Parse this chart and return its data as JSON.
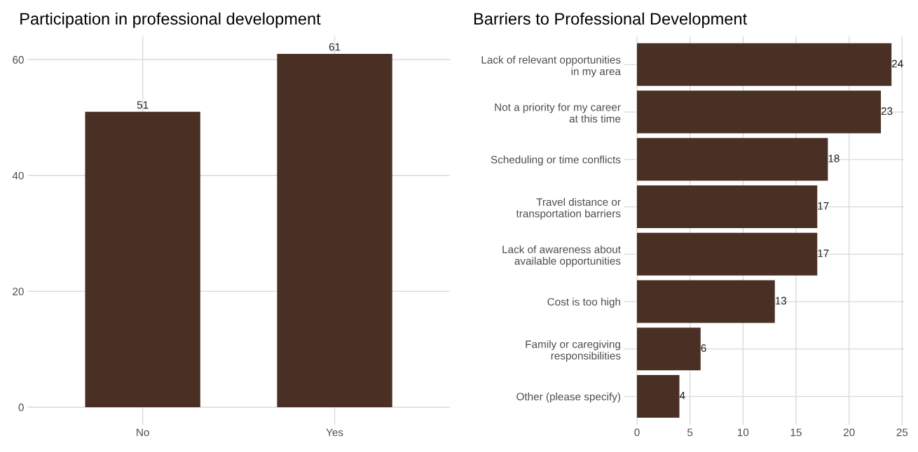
{
  "chart_data": [
    {
      "type": "bar",
      "title": "Participation in professional development",
      "categories": [
        "No",
        "Yes"
      ],
      "values": [
        51,
        61
      ],
      "color": "#4a2f24",
      "ylim": [
        -3.05,
        64.05
      ],
      "yticks": [
        0,
        20,
        40,
        60
      ],
      "grid": true,
      "data_labels": true
    },
    {
      "type": "bar",
      "orientation": "horizontal",
      "title": "Barriers to Professional Development",
      "categories": [
        "Lack of relevant opportunities\nin my area",
        "Not a priority for my career\nat this time",
        "Scheduling or time conflicts",
        "Travel distance or\ntransportation barriers",
        "Lack of awareness about\navailable opportunities",
        "Cost is too high",
        "Family or caregiving\nresponsibilities",
        "Other (please specify)"
      ],
      "values": [
        24,
        23,
        18,
        17,
        17,
        13,
        6,
        4
      ],
      "color": "#4a2f24",
      "xlim": [
        -1.2,
        25.2
      ],
      "xticks": [
        0,
        5,
        10,
        15,
        20,
        25
      ],
      "grid": true,
      "data_labels": true
    }
  ]
}
